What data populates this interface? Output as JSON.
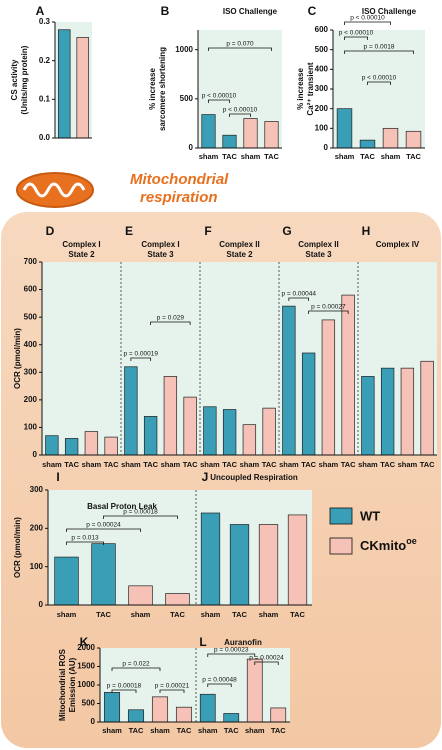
{
  "legend": [
    {
      "label": "WT",
      "color": "#3a9fb6"
    },
    {
      "label": "CKmito",
      "sup": "oe",
      "color": "#f6c1b6"
    }
  ],
  "section_title": [
    "Mitochondrial",
    "respiration"
  ],
  "chart_data": [
    {
      "type": "bar",
      "ylabel": [
        "CS activity",
        "(Units/mg protein)"
      ],
      "ylim": [
        0,
        0.3
      ],
      "yticks": [
        {
          "value": 0,
          "label": "0.0"
        },
        {
          "value": 0.1,
          "label": "0.1"
        },
        {
          "value": 0.2,
          "label": "0.2"
        },
        {
          "value": 0.3,
          "label": "0.3"
        }
      ],
      "colors": [
        "#3a9fb6",
        "#f6c1b6"
      ],
      "panels": [
        {
          "letter": "A",
          "values": [
            0.28,
            0.26
          ]
        }
      ]
    },
    {
      "type": "bar",
      "ylabel": [
        "% increase",
        "sarcomere shortening"
      ],
      "ylim": [
        0,
        1200
      ],
      "yticks": [
        0,
        500,
        1000
      ],
      "categories": [
        "sham",
        "TAC",
        "sham",
        "TAC"
      ],
      "colors": [
        "#3a9fb6",
        "#3a9fb6",
        "#f6c1b6",
        "#f6c1b6"
      ],
      "panels": [
        {
          "letter": "B",
          "title": [
            "ISO Challenge"
          ],
          "values": [
            340,
            130,
            300,
            270
          ],
          "annotations": [
            "p < 0.00010",
            "p = 0.070",
            "p < 0.00010"
          ]
        }
      ]
    },
    {
      "type": "bar",
      "ylabel": [
        "% increase",
        "Ca²⁺ transient"
      ],
      "ylim": [
        0,
        600
      ],
      "yticks": [
        0,
        100,
        200,
        300,
        400,
        500,
        600
      ],
      "categories": [
        "sham",
        "TAC",
        "sham",
        "TAC"
      ],
      "colors": [
        "#3a9fb6",
        "#3a9fb6",
        "#f6c1b6",
        "#f6c1b6"
      ],
      "panels": [
        {
          "letter": "C",
          "title": [
            "ISO Challenge"
          ],
          "values": [
            200,
            40,
            100,
            85
          ],
          "annotations": [
            "p < 0.00010",
            "p < 0.00010",
            "p = 0.0018",
            "p < 0.00010"
          ]
        }
      ]
    },
    {
      "type": "bar",
      "ylabel": [
        "OCR (pmol/min)"
      ],
      "ylim": [
        0,
        700
      ],
      "yticks": [
        0,
        100,
        200,
        300,
        400,
        500,
        600,
        700
      ],
      "categories": [
        "sham",
        "TAC",
        "sham",
        "TAC"
      ],
      "colors": [
        "#3a9fb6",
        "#3a9fb6",
        "#f6c1b6",
        "#f6c1b6"
      ],
      "panels": [
        {
          "letter": "D",
          "title": [
            "Complex I",
            "State 2"
          ],
          "values": [
            70,
            60,
            85,
            65
          ]
        },
        {
          "letter": "E",
          "title": [
            "Complex I",
            "State 3"
          ],
          "values": [
            320,
            140,
            285,
            210
          ],
          "annotations": [
            "p = 0.00019",
            "p = 0.029"
          ]
        },
        {
          "letter": "F",
          "title": [
            "Complex II",
            "State 2"
          ],
          "values": [
            175,
            165,
            110,
            170
          ]
        },
        {
          "letter": "G",
          "title": [
            "Complex II",
            "State 3"
          ],
          "values": [
            540,
            370,
            490,
            580
          ],
          "annotations": [
            "p = 0.00044",
            "p = 0.00027"
          ]
        },
        {
          "letter": "H",
          "title": [
            "Complex IV"
          ],
          "values": [
            285,
            315,
            315,
            340
          ]
        }
      ]
    },
    {
      "type": "bar",
      "ylabel": [
        "OCR (pmol/min)"
      ],
      "ylim": [
        0,
        300
      ],
      "yticks": [
        0,
        100,
        200,
        300
      ],
      "categories": [
        "sham",
        "TAC",
        "sham",
        "TAC"
      ],
      "colors": [
        "#3a9fb6",
        "#3a9fb6",
        "#f6c1b6",
        "#f6c1b6"
      ],
      "panels": [
        {
          "letter": "I",
          "title": [
            "Basal Proton Leak"
          ],
          "values": [
            125,
            160,
            50,
            30
          ],
          "annotations": [
            "p = 0.013",
            "p = 0.00024",
            "p = 0.00018"
          ]
        },
        {
          "letter": "J",
          "title": [
            "Uncoupled Respiration"
          ],
          "values": [
            240,
            210,
            210,
            235
          ]
        }
      ]
    },
    {
      "type": "bar",
      "ylabel": [
        "Mitochondrial ROS",
        "Emission (AU)"
      ],
      "ylim": [
        0,
        2000
      ],
      "yticks": [
        0,
        500,
        1000,
        1500,
        2000
      ],
      "categories": [
        "sham",
        "TAC",
        "sham",
        "TAC"
      ],
      "colors": [
        "#3a9fb6",
        "#3a9fb6",
        "#f6c1b6",
        "#f6c1b6"
      ],
      "panels": [
        {
          "letter": "K",
          "values": [
            800,
            330,
            680,
            400
          ],
          "annotations": [
            "p = 0.00018",
            "p = 0.022",
            "p = 0.00021"
          ]
        },
        {
          "letter": "L",
          "title": [
            "Auranofin"
          ],
          "values": [
            750,
            230,
            1700,
            380
          ],
          "annotations": [
            "p = 0.00023",
            "p = 0.00048",
            "p = 0.00024"
          ]
        }
      ]
    }
  ]
}
